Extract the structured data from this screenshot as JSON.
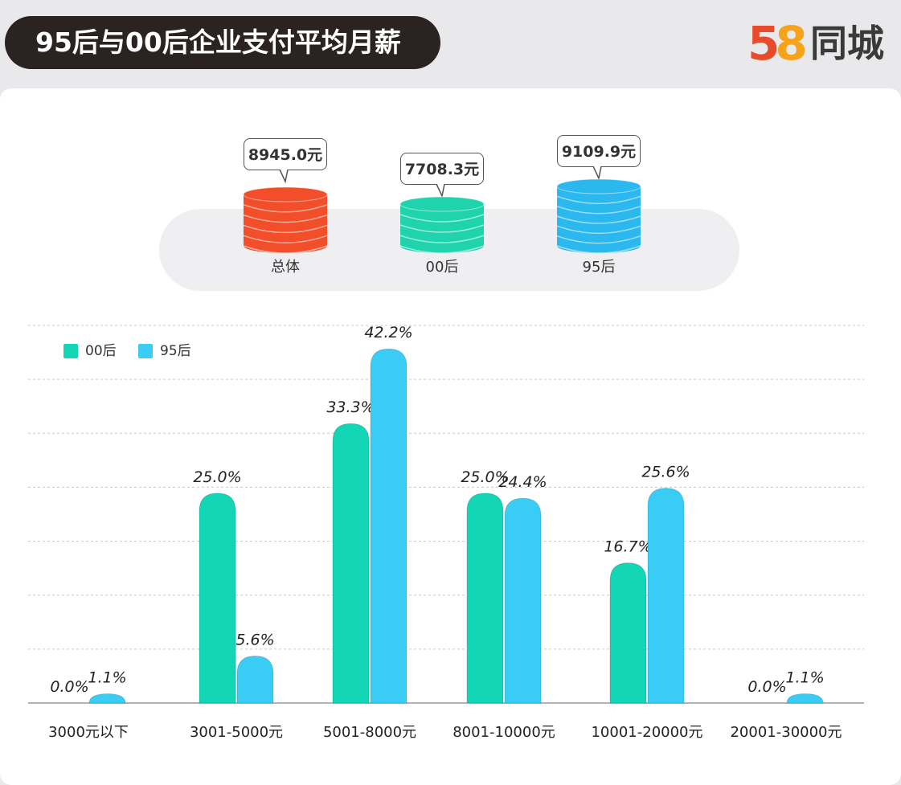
{
  "header": {
    "title": "95后与00后企业支付平均月薪",
    "logo_number": "58",
    "logo_text": "同城"
  },
  "averages": [
    {
      "label": "总体",
      "value": "8945.0元",
      "color": "#f24e2a"
    },
    {
      "label": "00后",
      "value": "7708.3元",
      "color": "#1fd4ad"
    },
    {
      "label": "95后",
      "value": "9109.9元",
      "color": "#2ab8ef"
    }
  ],
  "legend": [
    {
      "label": "00后",
      "color": "#12d6b5"
    },
    {
      "label": "95后",
      "color": "#39cdf6"
    }
  ],
  "chart_data": {
    "type": "bar",
    "categories": [
      "3000元以下",
      "3001-5000元",
      "5001-8000元",
      "8001-10000元",
      "10001-20000元",
      "20001-30000元"
    ],
    "series": [
      {
        "name": "00后",
        "values": [
          0.0,
          25.0,
          33.3,
          25.0,
          16.7,
          0.0
        ],
        "labels": [
          "0.0%",
          "25.0%",
          "33.3%",
          "25.0%",
          "16.7%",
          "0.0%"
        ],
        "color": "#12d6b5"
      },
      {
        "name": "95后",
        "values": [
          1.1,
          5.6,
          42.2,
          24.4,
          25.6,
          1.1
        ],
        "labels": [
          "1.1%",
          "5.6%",
          "42.2%",
          "24.4%",
          "25.6%",
          "1.1%"
        ],
        "color": "#39cdf6"
      }
    ],
    "ylim": [
      0,
      45
    ],
    "grid": true,
    "legend_position": "top-left"
  }
}
